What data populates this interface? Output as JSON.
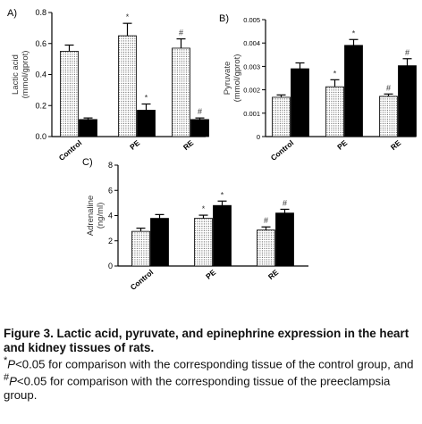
{
  "chart_data": [
    {
      "type": "bar",
      "panel_label": "A)",
      "ylabel": "Lactic acid\n(mmol/gprot)",
      "ylim": [
        0,
        0.8
      ],
      "yticks": [
        "0.0",
        "0.2",
        "0.4",
        "0.6",
        "0.8"
      ],
      "categories": [
        "Control",
        "PE",
        "RE"
      ],
      "series": [
        {
          "values": [
            0.55,
            0.65,
            0.57
          ],
          "errors": [
            0.04,
            0.08,
            0.06
          ],
          "pattern": "dotted"
        },
        {
          "values": [
            0.11,
            0.17,
            0.11
          ],
          "errors": [
            0.01,
            0.04,
            0.01
          ],
          "pattern": "solid"
        }
      ],
      "markers": [
        [
          "",
          "*",
          "#"
        ],
        [
          "",
          "*",
          "#"
        ]
      ],
      "grid": false
    },
    {
      "type": "bar",
      "panel_label": "B)",
      "ylabel": "Pyruvate\n(mmol/gprot)",
      "ylim": [
        0,
        0.005
      ],
      "yticks": [
        "0",
        "0.001",
        "0.002",
        "0.003",
        "0.004",
        "0.005"
      ],
      "categories": [
        "Control",
        "PE",
        "RE"
      ],
      "series": [
        {
          "values": [
            0.00168,
            0.00213,
            0.00172
          ],
          "errors": [
            0.0001,
            0.0003,
            0.0001
          ],
          "pattern": "dotted"
        },
        {
          "values": [
            0.0029,
            0.0039,
            0.00303
          ],
          "errors": [
            0.00025,
            0.00025,
            0.0003
          ],
          "pattern": "solid"
        }
      ],
      "markers": [
        [
          "",
          "*",
          "#"
        ],
        [
          "",
          "*",
          "#"
        ]
      ],
      "grid": false
    },
    {
      "type": "bar",
      "panel_label": "C)",
      "ylabel": "Adrenaline\n(ng/ml)",
      "ylim": [
        0,
        8
      ],
      "yticks": [
        "0",
        "2",
        "4",
        "6",
        "8"
      ],
      "categories": [
        "Control",
        "PE",
        "RE"
      ],
      "series": [
        {
          "values": [
            2.75,
            3.78,
            2.85
          ],
          "errors": [
            0.25,
            0.25,
            0.25
          ],
          "pattern": "dotted"
        },
        {
          "values": [
            3.78,
            4.8,
            4.2
          ],
          "errors": [
            0.3,
            0.35,
            0.3
          ],
          "pattern": "solid"
        }
      ],
      "markers": [
        [
          "",
          "*",
          "#"
        ],
        [
          "",
          "*",
          "#"
        ]
      ],
      "grid": false
    }
  ],
  "caption": {
    "title": "Figure 3. Lactic acid, pyruvate, and epinephrine expression in the heart and kidney tissues of rats.",
    "note_star_symbol": "*",
    "note_star_p": "P",
    "note_star_text": "<0.05 for comparison with the corresponding tissue of the control group, and ",
    "note_hash_symbol": "#",
    "note_hash_p": "P",
    "note_hash_text": "<0.05 for comparison with the corresponding tissue of the preeclampsia group."
  },
  "colors": {
    "solid_bar": "#000000",
    "dotted_bar_bg": "#ffffff",
    "dotted_bar_dot": "#555555"
  }
}
